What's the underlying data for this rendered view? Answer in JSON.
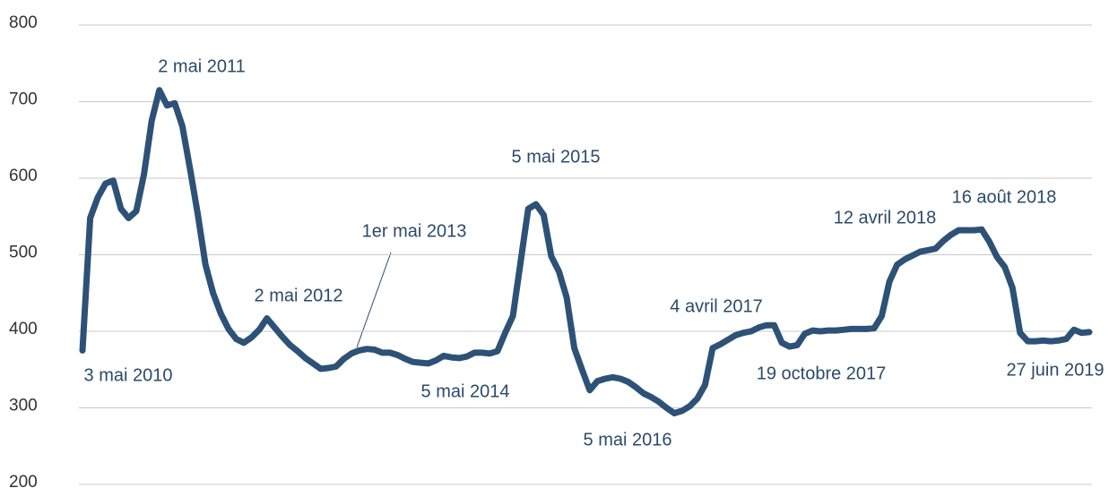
{
  "chart_data": {
    "type": "line",
    "values": [
      375,
      548,
      575,
      593,
      597,
      560,
      548,
      557,
      605,
      675,
      715,
      695,
      698,
      668,
      612,
      553,
      487,
      450,
      423,
      403,
      390,
      385,
      392,
      402,
      417,
      405,
      393,
      382,
      374,
      365,
      358,
      351,
      352,
      354,
      364,
      371,
      375,
      377,
      376,
      372,
      372,
      369,
      364,
      360,
      359,
      358,
      362,
      368,
      366,
      365,
      367,
      372,
      372,
      371,
      374,
      398,
      420,
      490,
      560,
      566,
      552,
      498,
      478,
      444,
      378,
      350,
      323,
      335,
      338,
      340,
      338,
      334,
      327,
      319,
      314,
      308,
      300,
      293,
      296,
      302,
      312,
      330,
      378,
      383,
      389,
      395,
      398,
      400,
      405,
      408,
      408,
      385,
      380,
      382,
      397,
      401,
      400,
      401,
      401,
      402,
      403,
      403,
      403,
      404,
      420,
      465,
      487,
      494,
      499,
      504,
      506,
      508,
      518,
      526,
      532,
      532,
      532,
      533,
      517,
      497,
      484,
      457,
      398,
      387,
      387,
      388,
      387,
      388,
      390,
      402,
      398,
      399
    ],
    "color": "#2d5177",
    "ylim": [
      200,
      800
    ],
    "yticks": [
      200,
      300,
      400,
      500,
      600,
      700,
      800
    ],
    "grid": true,
    "annotations": [
      "2 mai 2011",
      "3 mai 2010",
      "2 mai 2012",
      "1er mai 2013",
      "5 mai 2014",
      "5 mai 2015",
      "5 mai 2016",
      "4 avril 2017",
      "19 octobre 2017",
      "12 avril 2018",
      "16 août 2018",
      "27 juin 2019"
    ]
  }
}
